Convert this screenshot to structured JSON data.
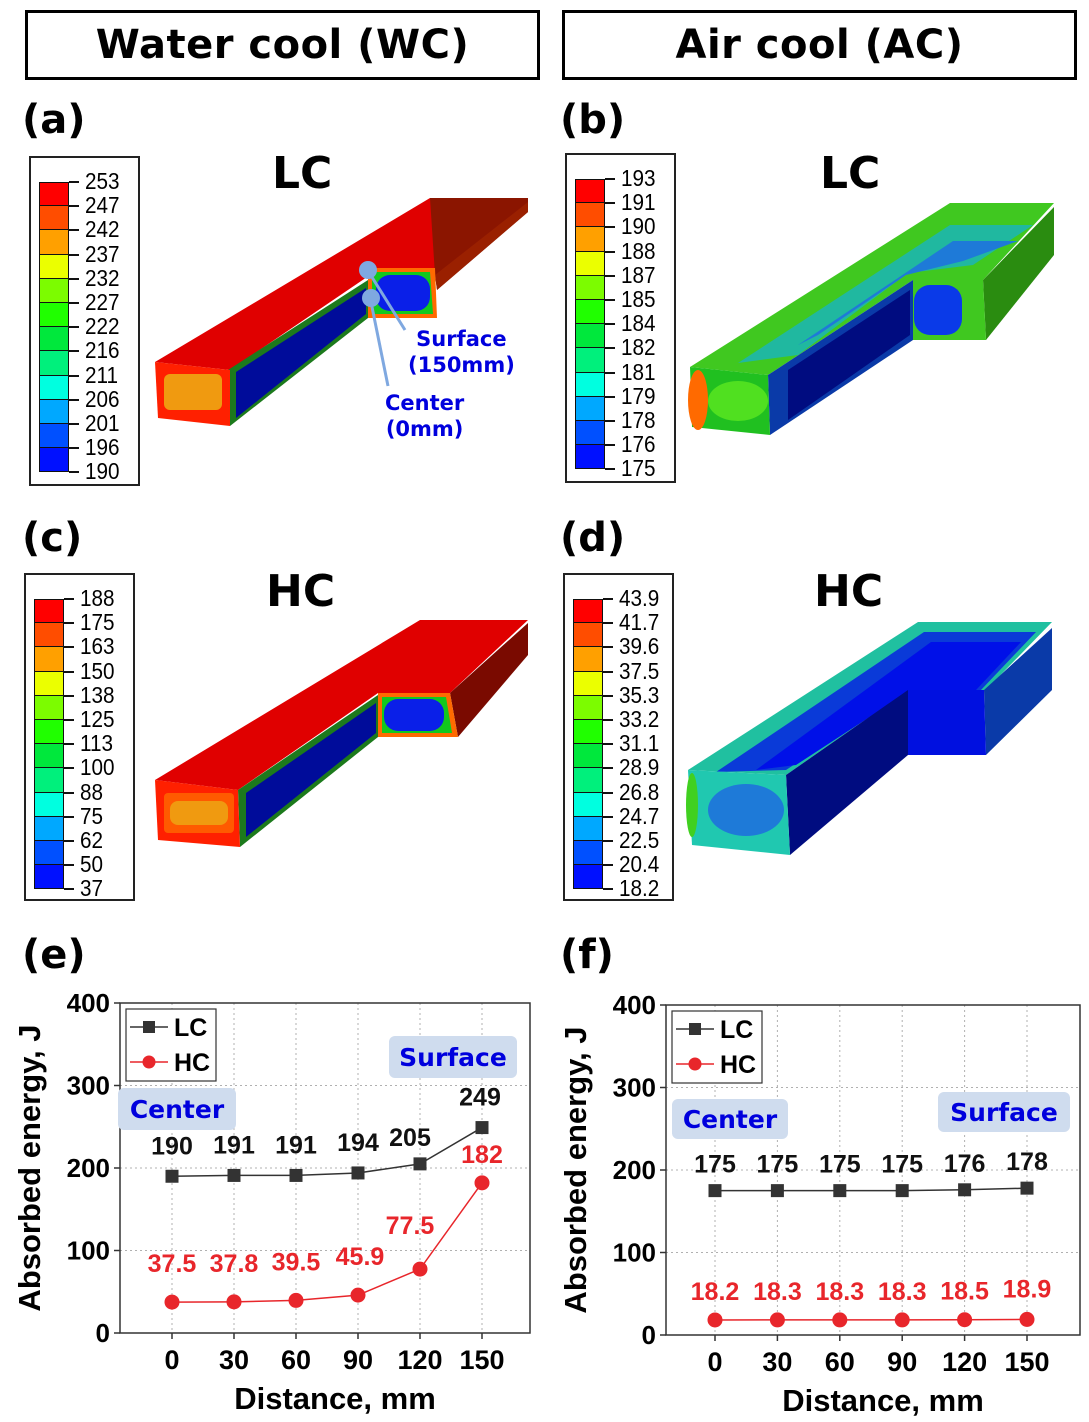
{
  "headers": {
    "left": "Water cool (WC)",
    "right": "Air cool (AC)"
  },
  "panels": [
    {
      "id": "a",
      "label": "(a)",
      "title": "LC",
      "condition": "Water cool",
      "legend": {
        "values": [
          "253",
          "247",
          "242",
          "237",
          "232",
          "227",
          "222",
          "216",
          "211",
          "206",
          "201",
          "196",
          "190"
        ]
      },
      "annotations": {
        "surface": "Surface",
        "surface_pos": "(150mm)",
        "center": "Center",
        "center_pos": "(0mm)"
      }
    },
    {
      "id": "b",
      "label": "(b)",
      "title": "LC",
      "condition": "Air cool",
      "legend": {
        "values": [
          "193",
          "191",
          "190",
          "188",
          "187",
          "185",
          "184",
          "182",
          "181",
          "179",
          "178",
          "176",
          "175"
        ]
      }
    },
    {
      "id": "c",
      "label": "(c)",
      "title": "HC",
      "condition": "Water cool",
      "legend": {
        "values": [
          "188",
          "175",
          "163",
          "150",
          "138",
          "125",
          "113",
          "100",
          "88",
          "75",
          "62",
          "50",
          "37"
        ]
      }
    },
    {
      "id": "d",
      "label": "(d)",
      "title": "HC",
      "condition": "Air cool",
      "legend": {
        "values": [
          "43.9",
          "41.7",
          "39.6",
          "37.5",
          "35.3",
          "33.2",
          "31.1",
          "28.9",
          "26.8",
          "24.7",
          "22.5",
          "20.4",
          "18.2"
        ]
      }
    }
  ],
  "colormap": [
    "#ff0000",
    "#ff4d00",
    "#ffa000",
    "#ebff00",
    "#7cfc00",
    "#20ff00",
    "#00e83c",
    "#00f07c",
    "#00ffe0",
    "#00a8ff",
    "#0050ff",
    "#0010ff"
  ],
  "chart_data": [
    {
      "id": "e",
      "label": "(e)",
      "type": "line",
      "title": "",
      "xlabel": "Distance, mm",
      "ylabel": "Absorbed energy, J",
      "x": [
        0,
        30,
        60,
        90,
        120,
        150
      ],
      "xticks": [
        "0",
        "30",
        "60",
        "90",
        "120",
        "150"
      ],
      "yticks": [
        "0",
        "100",
        "200",
        "300",
        "400"
      ],
      "ylim": [
        0,
        400
      ],
      "xlim": [
        -25,
        170
      ],
      "grid": true,
      "legend_position": "top-left",
      "annotations": {
        "left": "Center",
        "right": "Surface"
      },
      "series": [
        {
          "name": "LC",
          "marker": "square",
          "color": "#333333",
          "values": [
            190,
            191,
            191,
            194,
            205,
            249
          ],
          "labels": [
            "190",
            "191",
            "191",
            "194",
            "205",
            "249"
          ]
        },
        {
          "name": "HC",
          "marker": "circle",
          "color": "#e8262b",
          "values": [
            37.5,
            37.8,
            39.5,
            45.9,
            77.5,
            182
          ],
          "labels": [
            "37.5",
            "37.8",
            "39.5",
            "45.9",
            "77.5",
            "182"
          ]
        }
      ]
    },
    {
      "id": "f",
      "label": "(f)",
      "type": "line",
      "title": "",
      "xlabel": "Distance, mm",
      "ylabel": "Absorbed energy, J",
      "x": [
        0,
        30,
        60,
        90,
        120,
        150
      ],
      "xticks": [
        "0",
        "30",
        "60",
        "90",
        "120",
        "150"
      ],
      "yticks": [
        "0",
        "100",
        "200",
        "300",
        "400"
      ],
      "ylim": [
        0,
        400
      ],
      "xlim": [
        -25,
        170
      ],
      "grid": true,
      "legend_position": "top-left",
      "annotations": {
        "left": "Center",
        "right": "Surface"
      },
      "series": [
        {
          "name": "LC",
          "marker": "square",
          "color": "#333333",
          "values": [
            175,
            175,
            175,
            175,
            176,
            178
          ],
          "labels": [
            "175",
            "175",
            "175",
            "175",
            "176",
            "178"
          ]
        },
        {
          "name": "HC",
          "marker": "circle",
          "color": "#e8262b",
          "values": [
            18.2,
            18.3,
            18.3,
            18.3,
            18.5,
            18.9
          ],
          "labels": [
            "18.2",
            "18.3",
            "18.3",
            "18.3",
            "18.5",
            "18.9"
          ]
        }
      ]
    }
  ]
}
